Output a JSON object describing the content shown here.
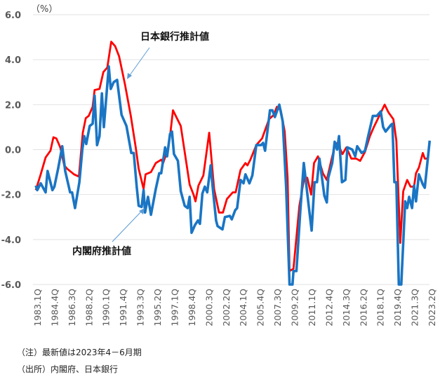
{
  "chart_data": {
    "type": "line",
    "unit_label": "（%）",
    "xlabel": "",
    "ylabel": "%",
    "ylim": [
      -6.0,
      6.0
    ],
    "yticks": [
      6.0,
      4.0,
      2.0,
      0.0,
      -2.0,
      -4.0,
      -6.0
    ],
    "ytick_labels": [
      "6.0",
      "4.0",
      "2.0",
      "0.0",
      "-2.0",
      "-4.0",
      "-6.0"
    ],
    "xlim": [
      1983.0,
      2023.25
    ],
    "xtick_labels": [
      "1983.1Q",
      "1984.4Q",
      "1986.3Q",
      "1988.2Q",
      "1990.1Q",
      "1991.4Q",
      "1993.3Q",
      "1995.2Q",
      "1997.1Q",
      "1998.4Q",
      "2000.3Q",
      "2002.2Q",
      "2004.1Q",
      "2005.4Q",
      "2007.3Q",
      "2009.2Q",
      "2011.1Q",
      "2012.4Q",
      "2014.3Q",
      "2016.2Q",
      "2018.1Q",
      "2019.4Q",
      "2021.3Q",
      "2023.2Q"
    ],
    "grid": true,
    "series": [
      {
        "name": "日本銀行推計値",
        "color": "#FF0000",
        "points": [
          [
            1983.0,
            -1.8
          ],
          [
            1983.5,
            -1.1
          ],
          [
            1984.0,
            -0.35
          ],
          [
            1984.5,
            -0.05
          ],
          [
            1984.8,
            0.55
          ],
          [
            1985.1,
            0.5
          ],
          [
            1985.5,
            0.1
          ],
          [
            1985.9,
            -0.7
          ],
          [
            1986.2,
            -0.85
          ],
          [
            1986.9,
            -1.1
          ],
          [
            1987.4,
            -1.2
          ],
          [
            1987.8,
            0.75
          ],
          [
            1988.1,
            1.4
          ],
          [
            1988.4,
            1.5
          ],
          [
            1988.8,
            1.9
          ],
          [
            1989.0,
            2.65
          ],
          [
            1989.5,
            2.7
          ],
          [
            1989.9,
            3.45
          ],
          [
            1990.3,
            3.65
          ],
          [
            1990.7,
            4.8
          ],
          [
            1991.1,
            4.6
          ],
          [
            1991.5,
            4.15
          ],
          [
            1992.1,
            2.9
          ],
          [
            1992.7,
            1.5
          ],
          [
            1993.2,
            0.1
          ],
          [
            1993.5,
            -0.85
          ],
          [
            1994.0,
            -1.75
          ],
          [
            1994.2,
            -1.1
          ],
          [
            1994.75,
            -1.0
          ],
          [
            1995.25,
            -0.6
          ],
          [
            1995.8,
            -0.45
          ],
          [
            1996.0,
            -0.6
          ],
          [
            1996.5,
            0.05
          ],
          [
            1996.7,
            0.6
          ],
          [
            1997.0,
            1.75
          ],
          [
            1997.8,
            1.05
          ],
          [
            1998.7,
            -1.55
          ],
          [
            1999.1,
            -2.0
          ],
          [
            1999.3,
            -2.3
          ],
          [
            1999.6,
            -1.6
          ],
          [
            2000.1,
            -1.15
          ],
          [
            2000.7,
            0.75
          ],
          [
            2001.2,
            -1.75
          ],
          [
            2001.7,
            -2.8
          ],
          [
            2002.1,
            -2.8
          ],
          [
            2002.5,
            -2.2
          ],
          [
            2003.1,
            -1.9
          ],
          [
            2003.4,
            -1.9
          ],
          [
            2003.9,
            -0.9
          ],
          [
            2004.4,
            -0.6
          ],
          [
            2004.6,
            -0.7
          ],
          [
            2004.9,
            -0.45
          ],
          [
            2005.5,
            0.2
          ],
          [
            2006.1,
            0.5
          ],
          [
            2006.8,
            1.35
          ],
          [
            2007.3,
            1.55
          ],
          [
            2007.6,
            1.9
          ],
          [
            2008.0,
            1.75
          ],
          [
            2008.4,
            0.8
          ],
          [
            2008.7,
            -1.25
          ],
          [
            2008.9,
            -5.4
          ],
          [
            2009.3,
            -5.3
          ],
          [
            2009.9,
            -2.5
          ],
          [
            2010.4,
            -1.25
          ],
          [
            2010.7,
            -1.25
          ],
          [
            2011.1,
            -2.0
          ],
          [
            2011.4,
            -0.6
          ],
          [
            2011.8,
            -0.3
          ],
          [
            2012.3,
            -1.05
          ],
          [
            2012.7,
            -1.35
          ],
          [
            2013.2,
            -0.4
          ],
          [
            2013.6,
            0.3
          ],
          [
            2013.9,
            0.2
          ],
          [
            2014.3,
            -0.2
          ],
          [
            2014.7,
            0.1
          ],
          [
            2015.2,
            -0.4
          ],
          [
            2015.7,
            -0.4
          ],
          [
            2016.1,
            -0.5
          ],
          [
            2016.6,
            -0.1
          ],
          [
            2017.1,
            0.6
          ],
          [
            2017.5,
            1.0
          ],
          [
            2018.0,
            1.45
          ],
          [
            2018.6,
            2.0
          ],
          [
            2019.0,
            1.65
          ],
          [
            2019.5,
            1.35
          ],
          [
            2019.8,
            0.4
          ],
          [
            2020.2,
            -4.15
          ],
          [
            2020.5,
            -1.85
          ],
          [
            2020.9,
            -1.35
          ],
          [
            2021.25,
            -1.65
          ],
          [
            2021.6,
            -1.65
          ],
          [
            2021.8,
            -1.05
          ],
          [
            2022.1,
            -0.8
          ],
          [
            2022.5,
            -0.15
          ],
          [
            2022.7,
            -0.4
          ],
          [
            2022.9,
            -0.4
          ]
        ]
      },
      {
        "name": "内閣府推計値",
        "color": "#1A75C4",
        "points": [
          [
            1983.0,
            -1.6
          ],
          [
            1983.15,
            -1.8
          ],
          [
            1983.5,
            -1.5
          ],
          [
            1984.0,
            -1.9
          ],
          [
            1984.2,
            -0.95
          ],
          [
            1984.7,
            -1.8
          ],
          [
            1984.9,
            -1.65
          ],
          [
            1985.3,
            -0.8
          ],
          [
            1985.7,
            0.15
          ],
          [
            1986.0,
            -0.95
          ],
          [
            1986.5,
            -1.9
          ],
          [
            1986.7,
            -1.9
          ],
          [
            1987.0,
            -2.6
          ],
          [
            1987.45,
            -1.45
          ],
          [
            1987.75,
            0.0
          ],
          [
            1987.95,
            0.6
          ],
          [
            1988.15,
            0.25
          ],
          [
            1988.5,
            1.05
          ],
          [
            1988.8,
            1.15
          ],
          [
            1989.0,
            2.4
          ],
          [
            1989.25,
            0.2
          ],
          [
            1989.5,
            0.6
          ],
          [
            1989.75,
            2.5
          ],
          [
            1989.95,
            1.0
          ],
          [
            1990.45,
            3.7
          ],
          [
            1990.65,
            2.7
          ],
          [
            1990.95,
            3.0
          ],
          [
            1991.3,
            3.1
          ],
          [
            1991.5,
            2.4
          ],
          [
            1991.75,
            1.55
          ],
          [
            1992.25,
            1.05
          ],
          [
            1992.75,
            -0.15
          ],
          [
            1993.0,
            -0.15
          ],
          [
            1993.3,
            -1.65
          ],
          [
            1993.5,
            -2.5
          ],
          [
            1993.8,
            -2.55
          ],
          [
            1994.0,
            -1.8
          ],
          [
            1994.15,
            -2.8
          ],
          [
            1994.45,
            -2.1
          ],
          [
            1994.75,
            -2.9
          ],
          [
            1995.25,
            -1.75
          ],
          [
            1995.6,
            -1.05
          ],
          [
            1995.8,
            -1.05
          ],
          [
            1996.2,
            0.1
          ],
          [
            1996.4,
            -0.3
          ],
          [
            1996.7,
            0.7
          ],
          [
            1996.9,
            0.8
          ],
          [
            1997.1,
            -0.2
          ],
          [
            1997.5,
            -0.5
          ],
          [
            1997.8,
            -1.85
          ],
          [
            1998.2,
            -2.5
          ],
          [
            1998.5,
            -2.6
          ],
          [
            1998.7,
            -2.1
          ],
          [
            1998.9,
            -3.7
          ],
          [
            1999.25,
            -3.35
          ],
          [
            1999.55,
            -3.15
          ],
          [
            1999.75,
            -3.3
          ],
          [
            2000.0,
            -1.95
          ],
          [
            2000.25,
            -1.65
          ],
          [
            2000.5,
            -1.9
          ],
          [
            2000.85,
            -0.7
          ],
          [
            2001.05,
            -1.65
          ],
          [
            2001.4,
            -3.15
          ],
          [
            2001.55,
            -3.4
          ],
          [
            2002.05,
            -3.55
          ],
          [
            2002.3,
            -3.0
          ],
          [
            2002.8,
            -2.95
          ],
          [
            2003.0,
            -3.1
          ],
          [
            2003.35,
            -2.7
          ],
          [
            2003.55,
            -2.6
          ],
          [
            2003.9,
            -1.35
          ],
          [
            2004.2,
            -1.5
          ],
          [
            2004.4,
            -1.1
          ],
          [
            2004.8,
            -1.5
          ],
          [
            2005.1,
            -1.15
          ],
          [
            2005.5,
            0.2
          ],
          [
            2006.0,
            0.2
          ],
          [
            2006.2,
            0.3
          ],
          [
            2006.4,
            -0.05
          ],
          [
            2006.9,
            1.75
          ],
          [
            2007.15,
            1.75
          ],
          [
            2007.4,
            1.45
          ],
          [
            2007.85,
            2.0
          ],
          [
            2008.2,
            1.25
          ],
          [
            2008.55,
            -1.65
          ],
          [
            2008.9,
            -6.0
          ],
          [
            2009.2,
            -6.0
          ],
          [
            2009.3,
            -5.4
          ],
          [
            2009.6,
            -5.4
          ],
          [
            2010.0,
            -2.7
          ],
          [
            2010.35,
            -0.6
          ],
          [
            2010.85,
            -2.5
          ],
          [
            2011.15,
            -3.6
          ],
          [
            2011.45,
            -1.45
          ],
          [
            2011.7,
            -1.45
          ],
          [
            2011.95,
            -0.4
          ],
          [
            2012.45,
            -2.05
          ],
          [
            2012.7,
            -2.35
          ],
          [
            2012.85,
            -1.25
          ],
          [
            2013.25,
            -0.6
          ],
          [
            2013.5,
            0.35
          ],
          [
            2013.75,
            0.0
          ],
          [
            2013.95,
            0.6
          ],
          [
            2014.25,
            -1.45
          ],
          [
            2014.6,
            -1.35
          ],
          [
            2014.8,
            0.1
          ],
          [
            2015.3,
            0.0
          ],
          [
            2015.6,
            -0.3
          ],
          [
            2015.8,
            0.15
          ],
          [
            2016.25,
            -0.15
          ],
          [
            2016.6,
            -0.05
          ],
          [
            2016.9,
            0.55
          ],
          [
            2017.4,
            1.5
          ],
          [
            2017.8,
            1.5
          ],
          [
            2018.2,
            1.7
          ],
          [
            2018.45,
            1.0
          ],
          [
            2018.7,
            0.8
          ],
          [
            2019.25,
            1.1
          ],
          [
            2019.4,
            1.15
          ],
          [
            2019.6,
            -1.45
          ],
          [
            2019.8,
            -1.45
          ],
          [
            2020.05,
            -6.0
          ],
          [
            2020.3,
            -6.0
          ],
          [
            2020.7,
            -2.3
          ],
          [
            2020.9,
            -2.6
          ],
          [
            2021.1,
            -2.1
          ],
          [
            2021.4,
            -2.6
          ],
          [
            2021.6,
            -1.6
          ],
          [
            2021.8,
            -2.3
          ],
          [
            2022.1,
            -1.1
          ],
          [
            2022.5,
            -1.55
          ],
          [
            2022.7,
            -1.7
          ],
          [
            2023.2,
            0.4
          ]
        ]
      }
    ],
    "annotations": [
      {
        "text": "日本銀行推計値",
        "target_series": "日本銀行推計値"
      },
      {
        "text": "内閣府推計値",
        "target_series": "内閣府推計値"
      }
    ],
    "notes": [
      "（注）最新値は2023年4－6月期",
      "（出所）内閣府、日本銀行"
    ]
  }
}
